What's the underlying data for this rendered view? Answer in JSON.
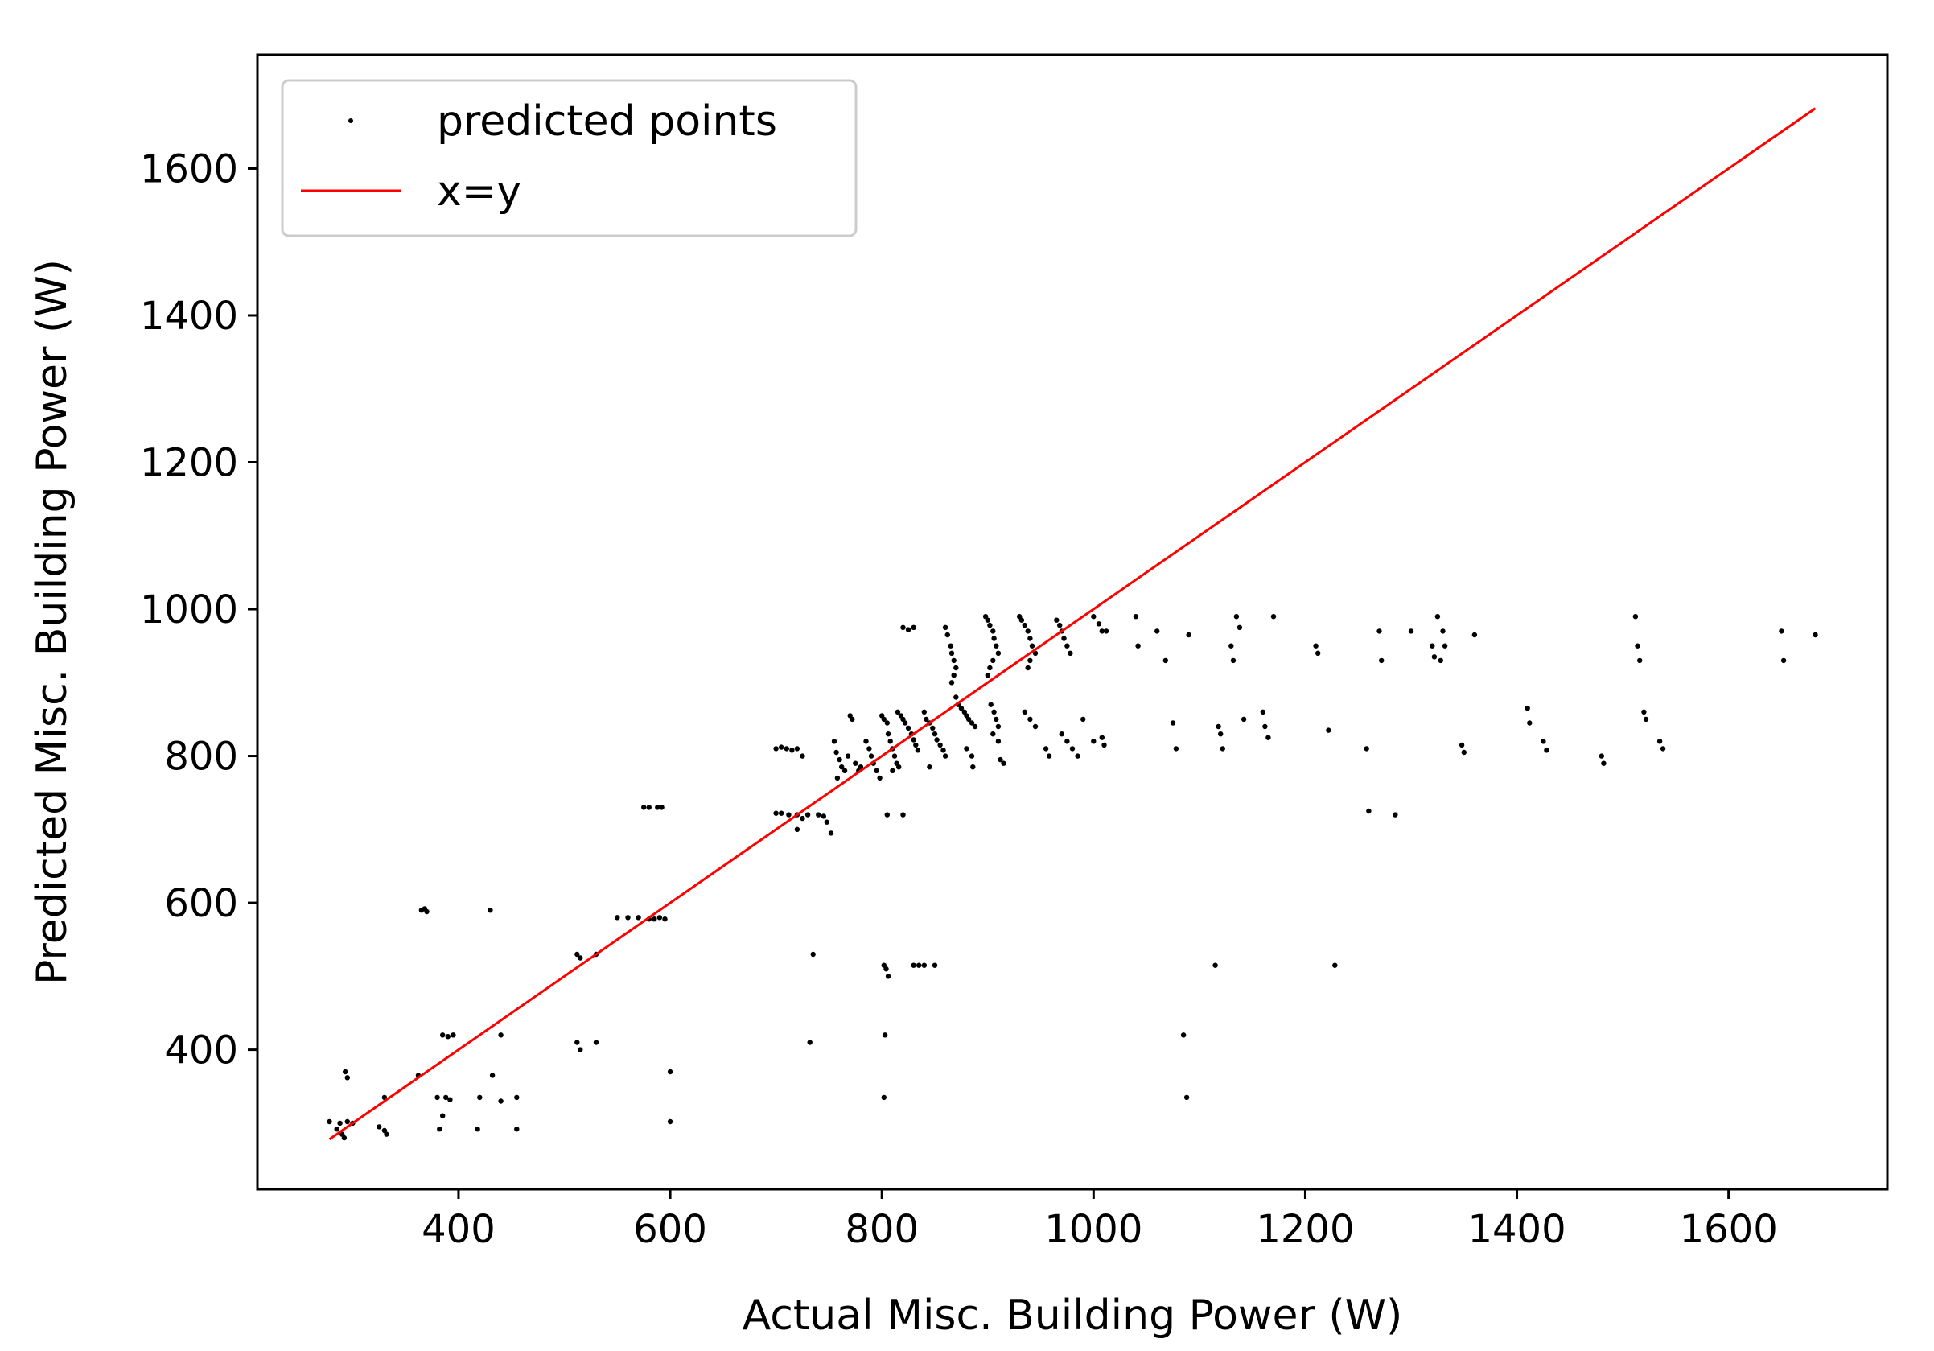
{
  "chart_data": {
    "type": "scatter",
    "title": "",
    "xlabel": "Actual Misc. Building Power (W)",
    "ylabel": "Predicted Misc. Building Power (W)",
    "xlim": [
      210,
      1750
    ],
    "ylim": [
      210,
      1755
    ],
    "xticks": [
      400,
      600,
      800,
      1000,
      1200,
      1400,
      1600
    ],
    "yticks": [
      400,
      600,
      800,
      1000,
      1200,
      1400,
      1600
    ],
    "grid": false,
    "legend_position": "upper-left",
    "colors": {
      "points": "#000000",
      "line": "#ff0000"
    },
    "series": [
      {
        "name": "predicted points",
        "kind": "scatter",
        "points": [
          [
            278,
            302
          ],
          [
            285,
            292
          ],
          [
            290,
            285
          ],
          [
            292,
            280
          ],
          [
            295,
            302
          ],
          [
            288,
            300
          ],
          [
            293,
            370
          ],
          [
            295,
            362
          ],
          [
            300,
            300
          ],
          [
            330,
            335
          ],
          [
            325,
            295
          ],
          [
            330,
            290
          ],
          [
            332,
            285
          ],
          [
            362,
            365
          ],
          [
            365,
            590
          ],
          [
            370,
            588
          ],
          [
            368,
            592
          ],
          [
            385,
            420
          ],
          [
            390,
            418
          ],
          [
            395,
            420
          ],
          [
            380,
            335
          ],
          [
            388,
            335
          ],
          [
            392,
            332
          ],
          [
            385,
            310
          ],
          [
            382,
            292
          ],
          [
            430,
            590
          ],
          [
            432,
            365
          ],
          [
            440,
            420
          ],
          [
            420,
            335
          ],
          [
            440,
            330
          ],
          [
            418,
            292
          ],
          [
            455,
            292
          ],
          [
            455,
            335
          ],
          [
            512,
            530
          ],
          [
            515,
            525
          ],
          [
            512,
            410
          ],
          [
            515,
            400
          ],
          [
            530,
            410
          ],
          [
            530,
            530
          ],
          [
            550,
            580
          ],
          [
            560,
            580
          ],
          [
            570,
            580
          ],
          [
            580,
            578
          ],
          [
            585,
            578
          ],
          [
            590,
            580
          ],
          [
            595,
            578
          ],
          [
            600,
            370
          ],
          [
            600,
            302
          ],
          [
            575,
            730
          ],
          [
            580,
            730
          ],
          [
            588,
            730
          ],
          [
            592,
            730
          ],
          [
            700,
            810
          ],
          [
            705,
            812
          ],
          [
            710,
            810
          ],
          [
            715,
            808
          ],
          [
            700,
            722
          ],
          [
            705,
            722
          ],
          [
            712,
            720
          ],
          [
            720,
            720
          ],
          [
            725,
            715
          ],
          [
            720,
            700
          ],
          [
            730,
            720
          ],
          [
            735,
            530
          ],
          [
            732,
            410
          ],
          [
            720,
            810
          ],
          [
            725,
            800
          ],
          [
            740,
            720
          ],
          [
            745,
            718
          ],
          [
            748,
            710
          ],
          [
            752,
            695
          ],
          [
            755,
            820
          ],
          [
            757,
            805
          ],
          [
            760,
            795
          ],
          [
            762,
            785
          ],
          [
            765,
            780
          ],
          [
            758,
            770
          ],
          [
            770,
            855
          ],
          [
            772,
            850
          ],
          [
            768,
            800
          ],
          [
            775,
            790
          ],
          [
            778,
            780
          ],
          [
            780,
            785
          ],
          [
            785,
            820
          ],
          [
            788,
            810
          ],
          [
            790,
            800
          ],
          [
            792,
            790
          ],
          [
            795,
            780
          ],
          [
            798,
            770
          ],
          [
            800,
            855
          ],
          [
            802,
            850
          ],
          [
            805,
            845
          ],
          [
            806,
            830
          ],
          [
            808,
            820
          ],
          [
            810,
            810
          ],
          [
            812,
            800
          ],
          [
            814,
            790
          ],
          [
            816,
            785
          ],
          [
            810,
            780
          ],
          [
            805,
            720
          ],
          [
            802,
            515
          ],
          [
            804,
            510
          ],
          [
            806,
            500
          ],
          [
            803,
            420
          ],
          [
            802,
            335
          ],
          [
            815,
            860
          ],
          [
            818,
            855
          ],
          [
            820,
            850
          ],
          [
            822,
            845
          ],
          [
            825,
            838
          ],
          [
            828,
            830
          ],
          [
            830,
            822
          ],
          [
            832,
            815
          ],
          [
            834,
            808
          ],
          [
            820,
            720
          ],
          [
            830,
            515
          ],
          [
            835,
            515
          ],
          [
            840,
            515
          ],
          [
            850,
            515
          ],
          [
            840,
            860
          ],
          [
            842,
            850
          ],
          [
            845,
            845
          ],
          [
            848,
            838
          ],
          [
            850,
            830
          ],
          [
            852,
            822
          ],
          [
            855,
            815
          ],
          [
            858,
            808
          ],
          [
            860,
            800
          ],
          [
            845,
            785
          ],
          [
            820,
            975
          ],
          [
            825,
            972
          ],
          [
            830,
            975
          ],
          [
            860,
            975
          ],
          [
            862,
            965
          ],
          [
            865,
            950
          ],
          [
            866,
            940
          ],
          [
            868,
            930
          ],
          [
            870,
            920
          ],
          [
            868,
            910
          ],
          [
            866,
            900
          ],
          [
            870,
            880
          ],
          [
            872,
            870
          ],
          [
            875,
            865
          ],
          [
            878,
            860
          ],
          [
            880,
            855
          ],
          [
            882,
            850
          ],
          [
            885,
            845
          ],
          [
            888,
            840
          ],
          [
            880,
            810
          ],
          [
            885,
            800
          ],
          [
            886,
            785
          ],
          [
            898,
            990
          ],
          [
            900,
            985
          ],
          [
            902,
            978
          ],
          [
            905,
            970
          ],
          [
            906,
            960
          ],
          [
            908,
            950
          ],
          [
            910,
            940
          ],
          [
            905,
            930
          ],
          [
            902,
            920
          ],
          [
            900,
            910
          ],
          [
            903,
            870
          ],
          [
            906,
            860
          ],
          [
            908,
            850
          ],
          [
            910,
            840
          ],
          [
            905,
            830
          ],
          [
            910,
            820
          ],
          [
            912,
            795
          ],
          [
            915,
            790
          ],
          [
            930,
            990
          ],
          [
            932,
            985
          ],
          [
            935,
            978
          ],
          [
            938,
            970
          ],
          [
            940,
            960
          ],
          [
            942,
            950
          ],
          [
            945,
            940
          ],
          [
            940,
            930
          ],
          [
            938,
            920
          ],
          [
            935,
            860
          ],
          [
            940,
            850
          ],
          [
            945,
            840
          ],
          [
            955,
            810
          ],
          [
            958,
            800
          ],
          [
            965,
            985
          ],
          [
            968,
            978
          ],
          [
            970,
            970
          ],
          [
            972,
            960
          ],
          [
            975,
            950
          ],
          [
            978,
            940
          ],
          [
            970,
            830
          ],
          [
            975,
            820
          ],
          [
            980,
            810
          ],
          [
            985,
            800
          ],
          [
            990,
            850
          ],
          [
            1000,
            990
          ],
          [
            1005,
            980
          ],
          [
            1008,
            970
          ],
          [
            1012,
            970
          ],
          [
            1000,
            820
          ],
          [
            1008,
            825
          ],
          [
            1010,
            815
          ],
          [
            1040,
            990
          ],
          [
            1042,
            950
          ],
          [
            1060,
            970
          ],
          [
            1068,
            930
          ],
          [
            1075,
            845
          ],
          [
            1078,
            810
          ],
          [
            1085,
            420
          ],
          [
            1088,
            335
          ],
          [
            1090,
            965
          ],
          [
            1115,
            515
          ],
          [
            1118,
            840
          ],
          [
            1120,
            830
          ],
          [
            1122,
            810
          ],
          [
            1130,
            950
          ],
          [
            1132,
            930
          ],
          [
            1135,
            990
          ],
          [
            1138,
            975
          ],
          [
            1142,
            850
          ],
          [
            1160,
            860
          ],
          [
            1162,
            840
          ],
          [
            1165,
            825
          ],
          [
            1170,
            990
          ],
          [
            1210,
            950
          ],
          [
            1212,
            940
          ],
          [
            1222,
            835
          ],
          [
            1228,
            515
          ],
          [
            1258,
            810
          ],
          [
            1260,
            725
          ],
          [
            1270,
            970
          ],
          [
            1272,
            930
          ],
          [
            1285,
            720
          ],
          [
            1300,
            970
          ],
          [
            1320,
            950
          ],
          [
            1322,
            935
          ],
          [
            1325,
            990
          ],
          [
            1328,
            930
          ],
          [
            1330,
            970
          ],
          [
            1332,
            950
          ],
          [
            1348,
            815
          ],
          [
            1350,
            805
          ],
          [
            1360,
            965
          ],
          [
            1410,
            865
          ],
          [
            1412,
            845
          ],
          [
            1425,
            820
          ],
          [
            1428,
            808
          ],
          [
            1480,
            800
          ],
          [
            1482,
            790
          ],
          [
            1512,
            990
          ],
          [
            1514,
            950
          ],
          [
            1516,
            930
          ],
          [
            1520,
            860
          ],
          [
            1522,
            850
          ],
          [
            1535,
            820
          ],
          [
            1538,
            810
          ],
          [
            1650,
            970
          ],
          [
            1652,
            930
          ],
          [
            1682,
            965
          ]
        ]
      },
      {
        "name": "x=y",
        "kind": "line",
        "points": [
          [
            278,
            278
          ],
          [
            1682,
            1682
          ]
        ]
      }
    ]
  }
}
